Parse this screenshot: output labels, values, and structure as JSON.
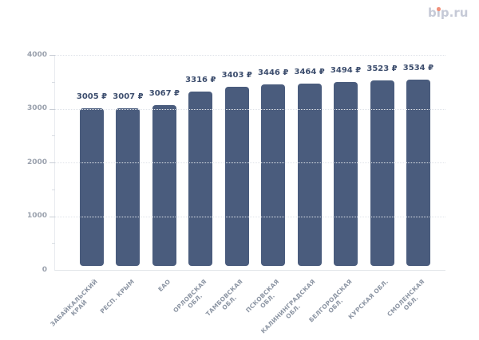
{
  "logo": {
    "text": "bip.ru",
    "text_color": "#c6cad7",
    "dot_color": "#f0907a"
  },
  "chart_data": {
    "type": "bar",
    "title": "",
    "xlabel": "",
    "ylabel": "",
    "categories": [
      "ЗАБАЙКАЛЬСКИЙ КРАЙ",
      "РЕСП. КРЫМ",
      "ЕАО",
      "ОРЛОВСКАЯ ОБЛ.",
      "ТАМБОВСКАЯ ОБЛ.",
      "ПСКОВСКАЯ ОБЛ.",
      "КАЛИНИНГРАДСКАЯ ОБЛ.",
      "БЕЛГОРОДСКАЯ ОБЛ.",
      "КУРСКАЯ ОБЛ.",
      "СМОЛЕНСКАЯ ОБЛ."
    ],
    "category_lines": [
      [
        "ЗАБАЙКАЛЬСКИЙ",
        "КРАЙ"
      ],
      [
        "РЕСП. КРЫМ"
      ],
      [
        "ЕАО"
      ],
      [
        "ОРЛОВСКАЯ",
        "ОБЛ."
      ],
      [
        "ТАМБОВСКАЯ",
        "ОБЛ."
      ],
      [
        "ПСКОВСКАЯ",
        "ОБЛ."
      ],
      [
        "КАЛИНИНГРАДСКАЯ",
        "ОБЛ."
      ],
      [
        "БЕЛГОРОДСКАЯ",
        "ОБЛ."
      ],
      [
        "КУРСКАЯ ОБЛ."
      ],
      [
        "СМОЛЕНСКАЯ",
        "ОБЛ."
      ]
    ],
    "values": [
      3005,
      3007,
      3067,
      3316,
      3403,
      3446,
      3464,
      3494,
      3523,
      3534
    ],
    "value_suffix": " ₽",
    "value_labels": [
      "3005 ₽",
      "3007 ₽",
      "3067 ₽",
      "3316 ₽",
      "3403 ₽",
      "3446 ₽",
      "3464 ₽",
      "3494 ₽",
      "3523 ₽",
      "3534 ₽"
    ],
    "ylim": [
      0,
      4000
    ],
    "yticks": [
      0,
      1000,
      2000,
      3000,
      4000
    ],
    "minor_yticks": [
      500,
      1500,
      2500,
      3500
    ],
    "grid": "horizontal dotted at major ticks",
    "legend": "none",
    "bar_color": "#4a5c7d",
    "value_label_color": "#3d4e6e",
    "y_axis_label_color": "#9aa1ad",
    "x_axis_label_color": "#8d96a4"
  }
}
